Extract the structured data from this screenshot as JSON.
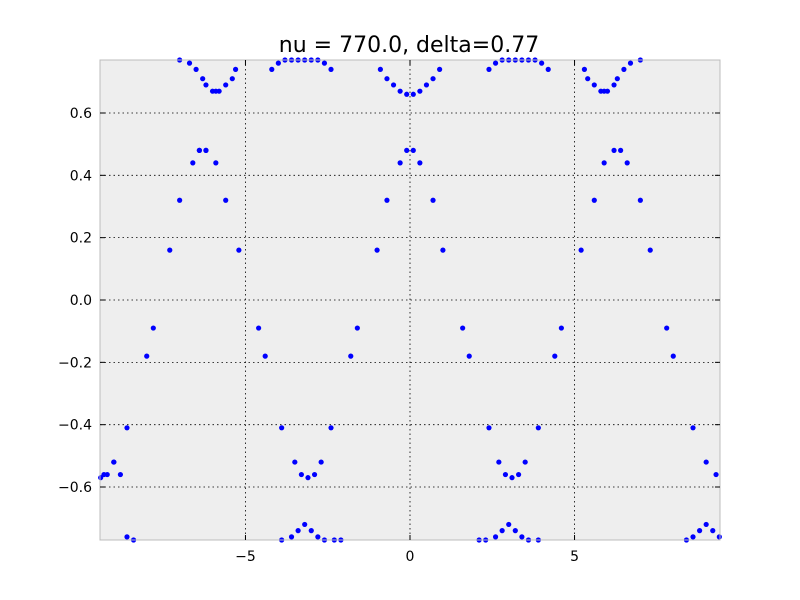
{
  "chart_data": {
    "type": "scatter",
    "title": "nu = 770.0, delta=0.77",
    "xlabel": "",
    "ylabel": "",
    "xlim": [
      -9.42,
      9.42
    ],
    "ylim": [
      -0.77,
      0.77
    ],
    "grid": true,
    "xticks": [
      -5,
      0,
      5
    ],
    "xtick_labels": [
      "−5",
      "0",
      "5"
    ],
    "yticks": [
      -0.6,
      -0.4,
      -0.2,
      0.0,
      0.2,
      0.4,
      0.6
    ],
    "ytick_labels": [
      "−0.6",
      "−0.4",
      "−0.2",
      "0.0",
      "0.2",
      "0.4",
      "0.6"
    ],
    "colors": {
      "points": "#0000ff",
      "axes_bg": "#eeeeee",
      "frame": "#bcbcbc"
    },
    "series": [
      {
        "x": [
          -7.0,
          -6.7,
          -6.5,
          -6.3,
          -6.2,
          -6.0,
          -5.9,
          -5.8,
          -5.6,
          -5.4,
          -5.3,
          -4.2,
          -4.0,
          -3.8,
          -3.6,
          -3.4,
          -3.2,
          -3.0,
          -2.8,
          -2.6,
          -2.4,
          -0.9,
          -0.7,
          -0.5,
          -0.3,
          -0.1,
          0.1,
          0.3,
          0.5,
          0.7,
          0.9,
          2.4,
          2.6,
          2.8,
          3.0,
          3.2,
          3.4,
          3.6,
          3.8,
          4.0,
          4.2,
          5.3,
          5.4,
          5.6,
          5.8,
          5.9,
          6.0,
          6.2,
          6.3,
          6.5,
          6.7,
          7.0,
          -6.6,
          -6.4,
          -6.2,
          -5.9,
          -6.2,
          -6.4,
          -5.6,
          -7.0,
          -5.2,
          -7.3,
          -7.8,
          -4.6,
          -8.0,
          -4.4,
          -0.3,
          -0.1,
          0.1,
          0.3,
          0.7,
          -0.7,
          1.0,
          -1.0,
          -1.6,
          1.6,
          -1.8,
          1.8,
          5.9,
          6.2,
          6.4,
          6.6,
          5.6,
          7.0,
          5.2,
          7.3,
          4.6,
          7.8,
          4.4,
          8.0,
          -8.6,
          -3.9,
          -3.5,
          -3.3,
          -3.1,
          -2.9,
          -2.7,
          -2.4,
          -9.0,
          -9.3,
          2.4,
          2.7,
          2.9,
          3.1,
          3.3,
          3.5,
          3.9,
          8.6,
          9.0,
          9.3,
          -9.4,
          -9.2,
          -9.0,
          -8.8,
          -8.6,
          -8.4,
          -3.9,
          -3.6,
          -3.4,
          -3.2,
          -3.0,
          -2.8,
          -2.6,
          -2.3,
          -2.1,
          2.1,
          2.3,
          2.6,
          2.8,
          3.0,
          3.2,
          3.4,
          3.6,
          3.9,
          8.4,
          8.6,
          8.8,
          9.0,
          9.2,
          9.4
        ],
        "y": [
          0.77,
          0.76,
          0.74,
          0.71,
          0.69,
          0.67,
          0.67,
          0.67,
          0.69,
          0.71,
          0.74,
          0.74,
          0.76,
          0.77,
          0.77,
          0.77,
          0.77,
          0.77,
          0.77,
          0.76,
          0.74,
          0.74,
          0.71,
          0.69,
          0.67,
          0.66,
          0.66,
          0.67,
          0.69,
          0.71,
          0.74,
          0.74,
          0.76,
          0.77,
          0.77,
          0.77,
          0.77,
          0.77,
          0.77,
          0.76,
          0.74,
          0.74,
          0.71,
          0.69,
          0.67,
          0.67,
          0.67,
          0.69,
          0.71,
          0.74,
          0.76,
          0.77,
          0.44,
          0.48,
          0.48,
          0.44,
          0.48,
          0.48,
          0.32,
          0.32,
          0.16,
          0.16,
          -0.09,
          -0.09,
          -0.18,
          -0.18,
          0.44,
          0.48,
          0.48,
          0.44,
          0.32,
          0.32,
          0.16,
          0.16,
          -0.09,
          -0.09,
          -0.18,
          -0.18,
          0.44,
          0.48,
          0.48,
          0.44,
          0.32,
          0.32,
          0.16,
          0.16,
          -0.09,
          -0.09,
          -0.18,
          -0.18,
          -0.41,
          -0.41,
          -0.52,
          -0.56,
          -0.57,
          -0.56,
          -0.52,
          -0.41,
          -0.52,
          -0.56,
          -0.41,
          -0.52,
          -0.56,
          -0.57,
          -0.56,
          -0.52,
          -0.41,
          -0.41,
          -0.52,
          -0.56,
          -0.57,
          -0.56,
          -0.52,
          -0.56,
          -0.76,
          -0.77,
          -0.77,
          -0.76,
          -0.74,
          -0.72,
          -0.74,
          -0.76,
          -0.77,
          -0.77,
          -0.77,
          -0.77,
          -0.77,
          -0.76,
          -0.74,
          -0.72,
          -0.74,
          -0.76,
          -0.77,
          -0.77,
          -0.77,
          -0.76,
          -0.74,
          -0.72,
          -0.74,
          -0.76
        ]
      }
    ]
  }
}
